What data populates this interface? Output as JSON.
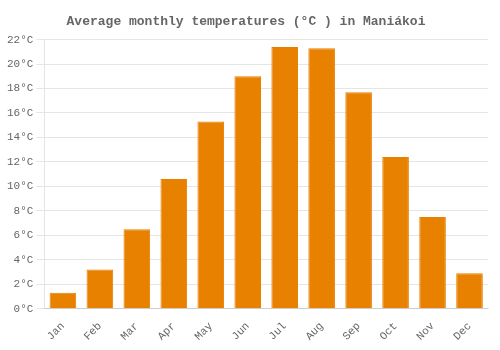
{
  "chart_data": {
    "type": "bar",
    "title": "Average monthly temperatures (°C ) in Maniákoi",
    "categories": [
      "Jan",
      "Feb",
      "Mar",
      "Apr",
      "May",
      "Jun",
      "Jul",
      "Aug",
      "Sep",
      "Oct",
      "Nov",
      "Dec"
    ],
    "values": [
      1.3,
      3.2,
      6.5,
      10.6,
      15.3,
      19.0,
      21.4,
      21.3,
      17.7,
      12.4,
      7.5,
      2.9
    ],
    "color": "#E88000",
    "ylim": [
      0,
      22
    ],
    "yticks": [
      {
        "value": 0,
        "label": "0°C"
      },
      {
        "value": 2,
        "label": "2°C"
      },
      {
        "value": 4,
        "label": "4°C"
      },
      {
        "value": 6,
        "label": "6°C"
      },
      {
        "value": 8,
        "label": "8°C"
      },
      {
        "value": 10,
        "label": "10°C"
      },
      {
        "value": 12,
        "label": "12°C"
      },
      {
        "value": 14,
        "label": "14°C"
      },
      {
        "value": 16,
        "label": "16°C"
      },
      {
        "value": 18,
        "label": "18°C"
      },
      {
        "value": 20,
        "label": "20°C"
      },
      {
        "value": 22,
        "label": "22°C"
      }
    ],
    "grid": true
  }
}
